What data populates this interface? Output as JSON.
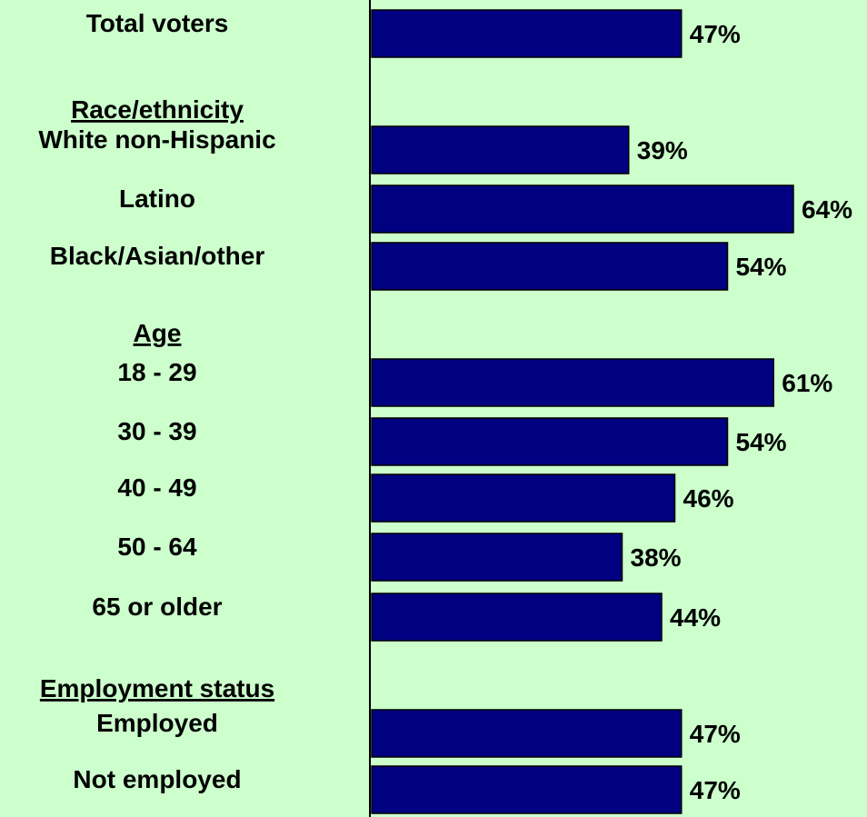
{
  "colors": {
    "background": "#ccffcc",
    "bar": "#000080",
    "axis": "#000000",
    "text": "#000000"
  },
  "chart_data": {
    "type": "bar",
    "orientation": "horizontal",
    "title": "",
    "xlabel": "",
    "ylabel": "",
    "xlim": [
      0,
      64
    ],
    "grid": false,
    "legend": "none",
    "value_suffix": "%",
    "rows": [
      {
        "kind": "category",
        "label": "Total voters",
        "value": 47
      },
      {
        "kind": "header",
        "label": "Race/ethnicity"
      },
      {
        "kind": "category",
        "label": "White non-Hispanic",
        "value": 39
      },
      {
        "kind": "category",
        "label": "Latino",
        "value": 64
      },
      {
        "kind": "category",
        "label": "Black/Asian/other",
        "value": 54
      },
      {
        "kind": "header",
        "label": "Age"
      },
      {
        "kind": "category",
        "label": "18 - 29",
        "value": 61
      },
      {
        "kind": "category",
        "label": "30 - 39",
        "value": 54
      },
      {
        "kind": "category",
        "label": "40 - 49",
        "value": 46
      },
      {
        "kind": "category",
        "label": "50 - 64",
        "value": 38
      },
      {
        "kind": "category",
        "label": "65 or older",
        "value": 44
      },
      {
        "kind": "header",
        "label": "Employment status"
      },
      {
        "kind": "category",
        "label": "Employed",
        "value": 47
      },
      {
        "kind": "category",
        "label": "Not employed",
        "value": 47
      }
    ]
  }
}
